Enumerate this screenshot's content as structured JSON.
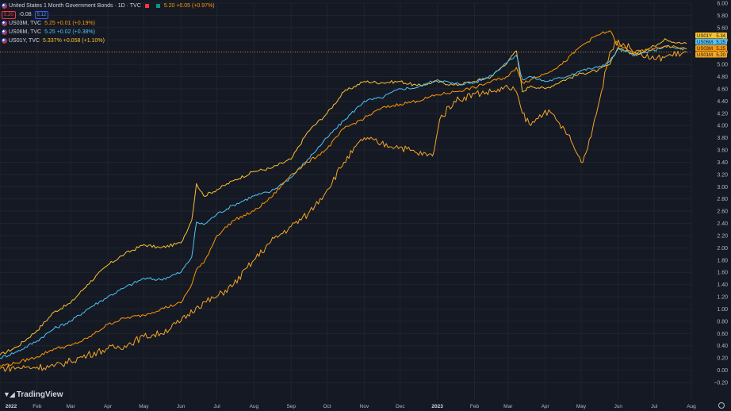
{
  "legend": {
    "title": "United States 1 Month Government Bonds · 1D · TVC",
    "main_value": "5.20 +0.05 (+0.97%)",
    "bid": "5.20",
    "spread": "-0.08",
    "ask": "5.12",
    "rows": [
      {
        "symbol": "US03M, TVC",
        "value": "5.25",
        "change": "+0.01 (+0.19%)"
      },
      {
        "symbol": "US06M, TVC",
        "value": "5.25",
        "change": "+0.02 (+0.38%)"
      },
      {
        "symbol": "US01Y, TVC",
        "value": "5.337%",
        "change": "+0.058 (+1.10%)"
      }
    ]
  },
  "logo": "TradingView",
  "colors": {
    "background": "#151924",
    "grid": "#20242f",
    "axis_text": "#b2b5be",
    "US01Y": "#fbc02d",
    "US06M": "#4fc3f7",
    "US03M": "#ff9800",
    "US01M": "#f5a623"
  },
  "price_tags": [
    {
      "label": "US01Y",
      "value": "5.34",
      "color": "#fbc02d"
    },
    {
      "label": "US06M",
      "value": "5.25",
      "color": "#4fc3f7"
    },
    {
      "label": "US03M",
      "value": "5.25",
      "color": "#ff9800"
    },
    {
      "label": "US01M",
      "value": "5.20",
      "color": "#f5a623"
    }
  ],
  "chart_data": {
    "type": "line",
    "title": "United States 1 Month Government Bonds · 1D · TVC",
    "xlabel": "",
    "ylabel": "",
    "ylim": [
      -0.2,
      6.0
    ],
    "xlim": [
      "2022-01-01",
      "2023-08-01"
    ],
    "grid": true,
    "yticks": [
      6.0,
      5.8,
      5.6,
      5.4,
      5.2,
      5.0,
      4.8,
      4.6,
      4.4,
      4.2,
      4.0,
      3.8,
      3.6,
      3.4,
      3.2,
      3.0,
      2.8,
      2.6,
      2.4,
      2.2,
      2.0,
      1.8,
      1.6,
      1.4,
      1.2,
      1.0,
      0.8,
      0.6,
      0.4,
      0.2,
      0.0,
      -0.2
    ],
    "ytick_labels": [
      "6.00",
      "5.80",
      "5.60",
      "5.40",
      "5.20",
      "5.00",
      "4.80",
      "4.60",
      "4.40",
      "4.20",
      "4.00",
      "3.80",
      "3.60",
      "3.40",
      "3.20",
      "3.00",
      "2.80",
      "2.60",
      "2.40",
      "2.20",
      "2.00",
      "1.80",
      "1.60",
      "1.40",
      "1.20",
      "1.00",
      "0.80",
      "0.60",
      "0.40",
      "0.20",
      "0.00",
      "−0.20"
    ],
    "xticks": [
      {
        "label": "2022",
        "date": "2022-01-01",
        "bold": true
      },
      {
        "label": "Feb",
        "date": "2022-02-01"
      },
      {
        "label": "Mar",
        "date": "2022-03-01"
      },
      {
        "label": "Apr",
        "date": "2022-04-01"
      },
      {
        "label": "May",
        "date": "2022-05-01"
      },
      {
        "label": "Jun",
        "date": "2022-06-01"
      },
      {
        "label": "Jul",
        "date": "2022-07-01"
      },
      {
        "label": "Aug",
        "date": "2022-08-01"
      },
      {
        "label": "Sep",
        "date": "2022-09-01"
      },
      {
        "label": "Oct",
        "date": "2022-10-01"
      },
      {
        "label": "Nov",
        "date": "2022-11-01"
      },
      {
        "label": "Dec",
        "date": "2022-12-01"
      },
      {
        "label": "2023",
        "date": "2023-01-01",
        "bold": true
      },
      {
        "label": "Feb",
        "date": "2023-02-01"
      },
      {
        "label": "Mar",
        "date": "2023-03-01"
      },
      {
        "label": "Apr",
        "date": "2023-04-01"
      },
      {
        "label": "May",
        "date": "2023-05-01"
      },
      {
        "label": "Jun",
        "date": "2023-06-01"
      },
      {
        "label": "Jul",
        "date": "2023-07-01"
      },
      {
        "label": "Aug",
        "date": "2023-08-01"
      }
    ],
    "reference_line": {
      "value": 5.2,
      "color": "#f5a623"
    },
    "series": [
      {
        "name": "US01Y",
        "color": "#fbc02d",
        "x": [
          "2022-01-01",
          "2022-01-15",
          "2022-02-01",
          "2022-02-15",
          "2022-03-01",
          "2022-03-15",
          "2022-04-01",
          "2022-04-15",
          "2022-05-01",
          "2022-05-15",
          "2022-06-01",
          "2022-06-10",
          "2022-06-14",
          "2022-06-20",
          "2022-07-01",
          "2022-07-15",
          "2022-08-01",
          "2022-08-15",
          "2022-09-01",
          "2022-09-15",
          "2022-10-01",
          "2022-10-15",
          "2022-11-01",
          "2022-11-15",
          "2022-12-01",
          "2022-12-15",
          "2023-01-01",
          "2023-01-15",
          "2023-02-01",
          "2023-02-15",
          "2023-03-01",
          "2023-03-08",
          "2023-03-13",
          "2023-03-20",
          "2023-04-01",
          "2023-04-15",
          "2023-05-01",
          "2023-05-15",
          "2023-05-25",
          "2023-06-01",
          "2023-06-15",
          "2023-07-01",
          "2023-07-10",
          "2023-07-20",
          "2023-07-28"
        ],
        "y": [
          0.25,
          0.38,
          0.65,
          0.95,
          1.1,
          1.4,
          1.72,
          1.9,
          2.05,
          2.0,
          2.08,
          2.45,
          3.05,
          2.85,
          2.95,
          3.1,
          3.25,
          3.3,
          3.45,
          3.9,
          4.2,
          4.55,
          4.72,
          4.7,
          4.72,
          4.65,
          4.72,
          4.66,
          4.72,
          4.8,
          5.05,
          5.22,
          4.55,
          4.65,
          4.6,
          4.73,
          4.85,
          4.9,
          5.0,
          5.28,
          5.15,
          5.3,
          5.42,
          5.35,
          5.34
        ]
      },
      {
        "name": "US06M",
        "color": "#4fc3f7",
        "x": [
          "2022-01-01",
          "2022-01-15",
          "2022-02-01",
          "2022-02-15",
          "2022-03-01",
          "2022-03-15",
          "2022-04-01",
          "2022-04-15",
          "2022-05-01",
          "2022-05-15",
          "2022-06-01",
          "2022-06-10",
          "2022-06-14",
          "2022-06-20",
          "2022-07-01",
          "2022-07-15",
          "2022-08-01",
          "2022-08-15",
          "2022-09-01",
          "2022-09-15",
          "2022-10-01",
          "2022-10-15",
          "2022-11-01",
          "2022-11-15",
          "2022-12-01",
          "2022-12-15",
          "2023-01-01",
          "2023-01-15",
          "2023-02-01",
          "2023-02-15",
          "2023-03-01",
          "2023-03-08",
          "2023-03-13",
          "2023-03-20",
          "2023-04-01",
          "2023-04-15",
          "2023-05-01",
          "2023-05-15",
          "2023-05-25",
          "2023-06-01",
          "2023-06-15",
          "2023-07-01",
          "2023-07-10",
          "2023-07-20",
          "2023-07-28"
        ],
        "y": [
          0.2,
          0.3,
          0.48,
          0.68,
          0.8,
          1.0,
          1.2,
          1.35,
          1.5,
          1.48,
          1.6,
          1.85,
          2.42,
          2.38,
          2.55,
          2.7,
          2.85,
          2.92,
          3.15,
          3.45,
          3.8,
          4.08,
          4.4,
          4.45,
          4.6,
          4.62,
          4.75,
          4.68,
          4.7,
          4.82,
          5.05,
          5.15,
          4.75,
          4.8,
          4.72,
          4.78,
          4.9,
          4.95,
          5.05,
          5.25,
          5.15,
          5.23,
          5.3,
          5.26,
          5.25
        ]
      },
      {
        "name": "US03M",
        "color": "#ff9800",
        "x": [
          "2022-01-01",
          "2022-01-15",
          "2022-02-01",
          "2022-02-15",
          "2022-03-01",
          "2022-03-15",
          "2022-04-01",
          "2022-04-15",
          "2022-05-01",
          "2022-05-15",
          "2022-06-01",
          "2022-06-10",
          "2022-06-14",
          "2022-06-20",
          "2022-07-01",
          "2022-07-15",
          "2022-08-01",
          "2022-08-15",
          "2022-09-01",
          "2022-09-15",
          "2022-10-01",
          "2022-10-15",
          "2022-11-01",
          "2022-11-15",
          "2022-12-01",
          "2022-12-15",
          "2023-01-01",
          "2023-01-15",
          "2023-02-01",
          "2023-02-15",
          "2023-03-01",
          "2023-03-08",
          "2023-03-13",
          "2023-03-20",
          "2023-04-01",
          "2023-04-15",
          "2023-05-01",
          "2023-05-15",
          "2023-05-25",
          "2023-06-01",
          "2023-06-15",
          "2023-07-01",
          "2023-07-10",
          "2023-07-20",
          "2023-07-28"
        ],
        "y": [
          0.07,
          0.12,
          0.22,
          0.35,
          0.4,
          0.52,
          0.75,
          0.85,
          0.9,
          1.0,
          1.1,
          1.4,
          1.65,
          1.75,
          2.2,
          2.45,
          2.6,
          2.82,
          3.2,
          3.4,
          3.62,
          3.95,
          4.12,
          4.28,
          4.35,
          4.4,
          4.5,
          4.55,
          4.62,
          4.72,
          4.8,
          4.95,
          4.7,
          4.75,
          4.85,
          5.0,
          5.3,
          5.48,
          5.55,
          5.3,
          5.2,
          5.25,
          5.3,
          5.28,
          5.25
        ]
      },
      {
        "name": "US01M",
        "color": "#f5a623",
        "x": [
          "2022-01-01",
          "2022-01-15",
          "2022-02-01",
          "2022-02-15",
          "2022-03-01",
          "2022-03-15",
          "2022-04-01",
          "2022-04-15",
          "2022-05-01",
          "2022-05-15",
          "2022-06-01",
          "2022-06-15",
          "2022-07-01",
          "2022-07-15",
          "2022-08-01",
          "2022-08-15",
          "2022-09-01",
          "2022-09-15",
          "2022-10-01",
          "2022-10-15",
          "2022-11-01",
          "2022-11-15",
          "2022-12-01",
          "2022-12-15",
          "2022-12-28",
          "2023-01-03",
          "2023-01-15",
          "2023-02-01",
          "2023-02-15",
          "2023-03-01",
          "2023-03-08",
          "2023-03-13",
          "2023-03-20",
          "2023-04-01",
          "2023-04-10",
          "2023-04-20",
          "2023-05-01",
          "2023-05-05",
          "2023-05-15",
          "2023-05-25",
          "2023-06-01",
          "2023-06-15",
          "2023-07-01",
          "2023-07-15",
          "2023-07-28"
        ],
        "y": [
          0.03,
          0.04,
          0.05,
          0.06,
          0.15,
          0.25,
          0.35,
          0.4,
          0.55,
          0.6,
          0.8,
          1.05,
          1.2,
          1.4,
          1.8,
          2.1,
          2.35,
          2.55,
          2.95,
          3.4,
          3.8,
          3.7,
          3.65,
          3.55,
          3.5,
          4.1,
          4.4,
          4.52,
          4.55,
          4.62,
          4.55,
          4.2,
          4.0,
          4.25,
          4.1,
          3.85,
          3.4,
          3.55,
          4.3,
          5.2,
          5.4,
          5.2,
          5.08,
          5.15,
          5.2
        ]
      }
    ]
  }
}
